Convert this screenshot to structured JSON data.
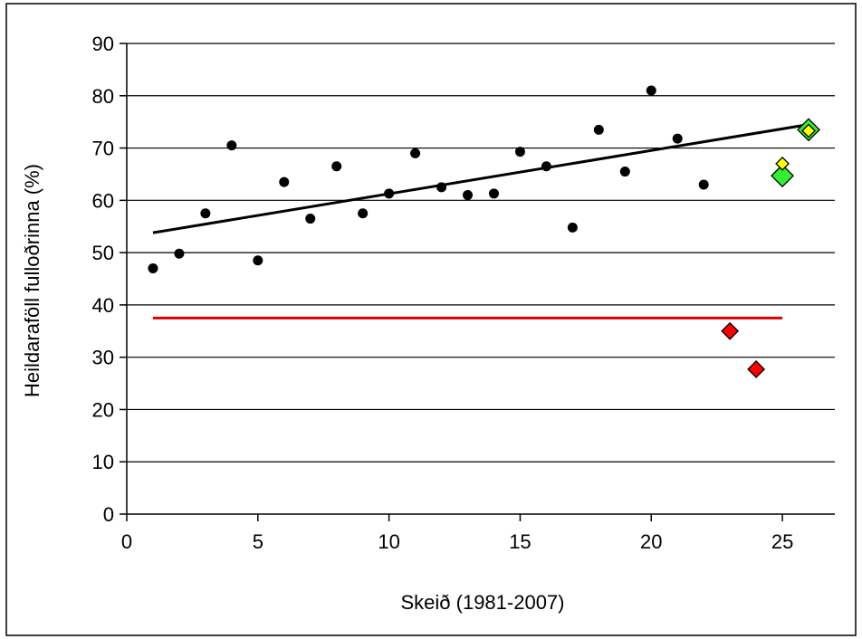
{
  "chart_data": {
    "type": "scatter",
    "title": "",
    "xlabel": "Skeið (1981-2007)",
    "ylabel": "Heildaraföll fulloðrinna (%)",
    "xlim": [
      0,
      27
    ],
    "ylim": [
      0,
      90
    ],
    "x_ticks": [
      0,
      5,
      10,
      15,
      20,
      25
    ],
    "y_ticks": [
      0,
      10,
      20,
      30,
      40,
      50,
      60,
      70,
      80,
      90
    ],
    "grid": "horizontal",
    "legend": "none",
    "series": [
      {
        "marker": "circle",
        "color": "#000000",
        "points": [
          [
            1,
            47.0
          ],
          [
            2,
            49.8
          ],
          [
            3,
            57.5
          ],
          [
            4,
            70.5
          ],
          [
            5,
            48.5
          ],
          [
            6,
            63.5
          ],
          [
            7,
            56.5
          ],
          [
            8,
            66.5
          ],
          [
            9,
            57.5
          ],
          [
            10,
            61.3
          ],
          [
            11,
            69.0
          ],
          [
            12,
            62.5
          ],
          [
            13,
            61.0
          ],
          [
            14,
            61.3
          ],
          [
            15,
            69.3
          ],
          [
            16,
            66.5
          ],
          [
            17,
            54.8
          ],
          [
            18,
            73.5
          ],
          [
            19,
            65.5
          ],
          [
            20,
            81.0
          ],
          [
            21,
            71.8
          ],
          [
            22,
            63.0
          ]
        ]
      },
      {
        "marker": "diamond",
        "color": "#ff0000",
        "points": [
          [
            23,
            35.0
          ],
          [
            24,
            27.7
          ]
        ]
      },
      {
        "marker": "diamond-large",
        "color": "#33ee33",
        "points": [
          [
            25,
            64.7
          ],
          [
            26,
            73.5
          ]
        ]
      },
      {
        "marker": "diamond-small",
        "color": "#ffff00",
        "points": [
          [
            25,
            67.0
          ],
          [
            26,
            73.3
          ]
        ]
      }
    ],
    "lines": [
      {
        "kind": "trend",
        "color": "#000000",
        "from": [
          1,
          53.8
        ],
        "to": [
          26,
          74.5
        ]
      },
      {
        "kind": "reference",
        "color": "#dd0000",
        "from": [
          1,
          37.5
        ],
        "to": [
          25,
          37.5
        ]
      }
    ]
  }
}
